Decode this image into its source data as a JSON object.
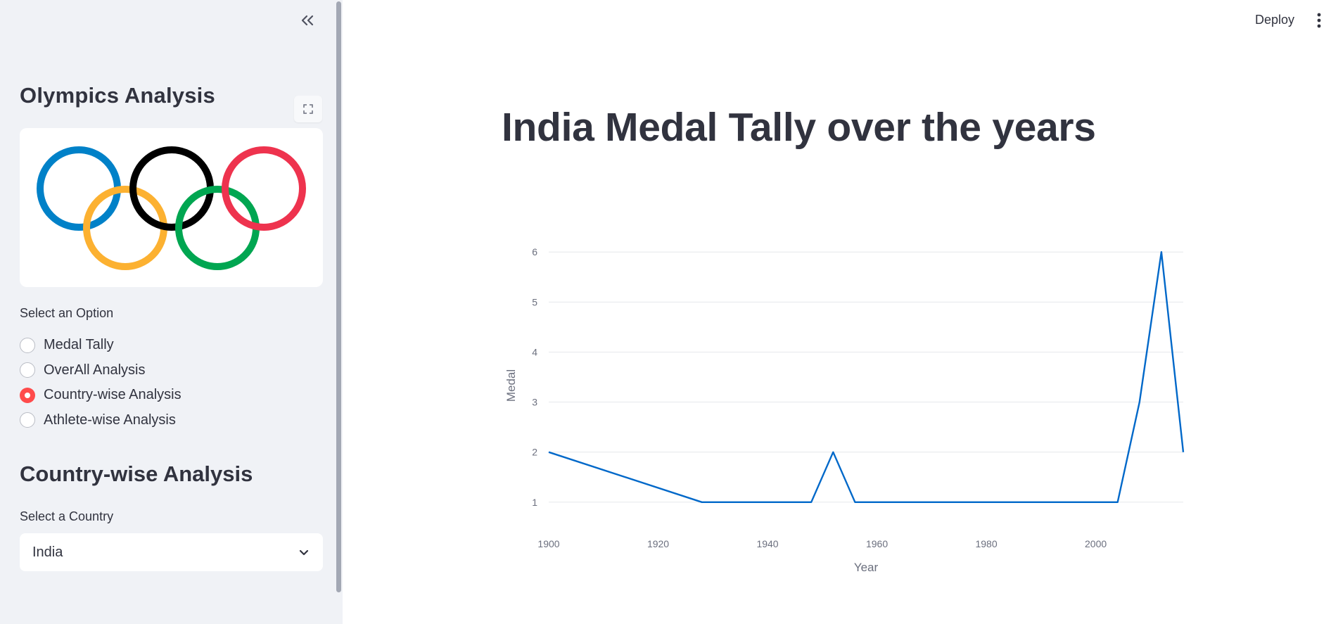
{
  "header": {
    "deploy_label": "Deploy",
    "menu_icon": "kebab-menu-icon"
  },
  "sidebar": {
    "collapse_icon": "double-chevron-left-icon",
    "title": "Olympics Analysis",
    "fullscreen_icon": "fullscreen-icon",
    "logo": {
      "name": "olympic-rings-logo",
      "ring_colors": [
        "#0081c8",
        "#fcb131",
        "#000000",
        "#00a651",
        "#ee334e"
      ]
    },
    "radio_label": "Select an Option",
    "options": [
      {
        "label": "Medal Tally",
        "selected": false
      },
      {
        "label": "OverAll Analysis",
        "selected": false
      },
      {
        "label": "Country-wise Analysis",
        "selected": true
      },
      {
        "label": "Athlete-wise Analysis",
        "selected": false
      }
    ],
    "section_heading": "Country-wise Analysis",
    "country_label": "Select a Country",
    "country_value": "India",
    "accent_color": "#ff4b4b"
  },
  "main": {
    "title": "India Medal Tally over the years"
  },
  "chart_data": {
    "type": "line",
    "title": "",
    "xlabel": "Year",
    "ylabel": "Medal",
    "xlim": [
      1900,
      2016
    ],
    "ylim": [
      0.8,
      6.2
    ],
    "x_ticks": [
      1900,
      1920,
      1940,
      1960,
      1980,
      2000
    ],
    "y_ticks": [
      1,
      2,
      3,
      4,
      5,
      6
    ],
    "grid": true,
    "line_color": "#0068c9",
    "series": [
      {
        "x": [
          1900,
          1928,
          1932,
          1936,
          1948,
          1952,
          1956,
          1960,
          1964,
          1968,
          1972,
          1980,
          1996,
          2000,
          2004,
          2008,
          2012,
          2016
        ],
        "y": [
          2,
          1,
          1,
          1,
          1,
          2,
          1,
          1,
          1,
          1,
          1,
          1,
          1,
          1,
          1,
          3,
          6,
          2
        ]
      }
    ]
  }
}
